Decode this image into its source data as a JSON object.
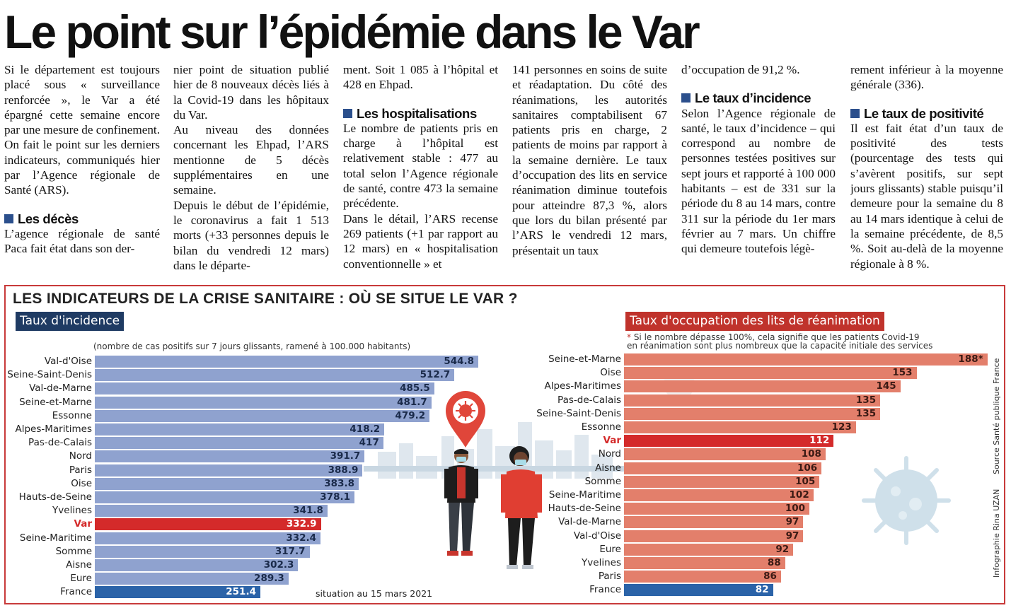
{
  "headline": "Le point sur l’épidémie dans le Var",
  "columns": [
    {
      "blocks": [
        {
          "type": "p",
          "text": "Si le département est toujours placé sous « surveillance renforcée », le Var a été épargné cette semaine encore par une mesure de confinement. On fait le point sur les derniers indicateurs, communiqués hier par l’Agence régionale de Santé (ARS)."
        },
        {
          "type": "h",
          "text": "Les décès"
        },
        {
          "type": "p",
          "text": "L’agence régionale de santé Paca fait état dans son der-"
        }
      ]
    },
    {
      "blocks": [
        {
          "type": "p",
          "text": "nier point de situation publié hier de 8 nouveaux décès liés à la Covid-19 dans les hôpitaux du Var."
        },
        {
          "type": "p",
          "text": "Au niveau des données concernant les Ehpad, l’ARS mentionne de 5 décès supplémentaires en une semaine."
        },
        {
          "type": "p",
          "text": "Depuis le début de l’épidémie, le coronavirus a fait 1 513 morts (+33 personnes depuis le bilan du vendredi 12 mars) dans le départe-"
        }
      ]
    },
    {
      "blocks": [
        {
          "type": "p",
          "text": "ment. Soit 1 085 à l’hôpital et 428 en Ehpad."
        },
        {
          "type": "h",
          "text": "Les hospitalisations"
        },
        {
          "type": "p",
          "text": "Le nombre de patients pris en charge à l’hôpital est relativement stable : 477 au total selon l’Agence régionale de santé, contre 473 la semaine précédente."
        },
        {
          "type": "p",
          "text": "Dans le détail, l’ARS recense 269 patients (+1 par rapport au 12 mars) en « hospitalisation conventionnelle » et"
        }
      ]
    },
    {
      "blocks": [
        {
          "type": "p",
          "text": "141 personnes en soins de suite et réadaptation. Du côté des réanimations, les autorités sanitaires comptabilisent 67 patients pris en charge, 2 patients de moins par rapport à la semaine dernière. Le taux d’occupation des lits en service réanimation diminue toutefois pour atteindre 87,3 %, alors que lors du bilan présenté par l’ARS le vendredi 12 mars, présentait un taux"
        }
      ]
    },
    {
      "blocks": [
        {
          "type": "p",
          "text": "d’occupation de 91,2 %."
        },
        {
          "type": "h",
          "text": "Le taux d’incidence"
        },
        {
          "type": "p",
          "text": "Selon l’Agence régionale de santé, le taux d’incidence – qui correspond au nombre de personnes testées positives sur sept jours et rapporté à 100 000 habitants – est de 331 sur la période du 8 au 14 mars, contre 311 sur la période du 1er mars février au 7 mars. Un chiffre qui demeure toutefois légè-"
        }
      ]
    },
    {
      "blocks": [
        {
          "type": "p",
          "text": "rement inférieur à la moyenne générale (336)."
        },
        {
          "type": "h",
          "text": "Le taux de positivité"
        },
        {
          "type": "p",
          "text": "Il est fait état d’un taux de positivité des tests (pourcentage des tests qui s’avèrent positifs, sur sept jours glissants) stable puisqu’il demeure pour la semaine du 8 au 14 mars identique à celui de la semaine précédente, de 8,5 %. Soit au-delà de la moyenne régionale à 8 %."
        }
      ]
    }
  ],
  "infographic": {
    "title": "LES INDICATEURS DE LA CRISE SANITAIRE : OÙ SE SITUE LE VAR ?",
    "left_tag": "Taux d'incidence",
    "left_subtitle": "(nombre de cas positifs sur 7 jours glissants, ramené à 100.000 habitants)",
    "right_tag": "Taux d'occupation des lits de réanimation",
    "right_note_star": "*",
    "right_note_line1": " Si le nombre dépasse 100%, cela signifie que les patients Covid-19",
    "right_note_line2": "en réanimation sont plus nombreux que la capacité initiale des services",
    "footnote": "situation au 15 mars 2021",
    "source": "Source Santé publique France",
    "credit": "Infographie Rina UZAN",
    "colors": {
      "bar": "#8fa2cf",
      "highlight": "#d42a2a",
      "france_left": "#2b63a8",
      "bar_right": "#e37f6b",
      "france_right": "#2b63a8"
    }
  },
  "chart_data": [
    {
      "type": "bar",
      "title": "Taux d'incidence",
      "subtitle": "(nombre de cas positifs sur 7 jours glissants, ramené à 100.000 habitants)",
      "orientation": "horizontal",
      "categories": [
        "Val-d'Oise",
        "Seine-Saint-Denis",
        "Val-de-Marne",
        "Seine-et-Marne",
        "Essonne",
        "Alpes-Maritimes",
        "Pas-de-Calais",
        "Nord",
        "Paris",
        "Oise",
        "Hauts-de-Seine",
        "Yvelines",
        "Var",
        "Seine-Maritime",
        "Somme",
        "Aisne",
        "Eure",
        "France"
      ],
      "values": [
        544.8,
        512.7,
        485.5,
        481.7,
        479.2,
        418.2,
        417,
        391.7,
        388.9,
        383.8,
        378.1,
        341.8,
        332.9,
        332.4,
        317.7,
        302.3,
        289.3,
        251.4
      ],
      "value_labels": [
        "544.8",
        "512.7",
        "485.5",
        "481.7",
        "479.2",
        "418.2",
        "417",
        "391.7",
        "388.9",
        "383.8",
        "378.1",
        "341.8",
        "332.9",
        "332.4",
        "317.7",
        "302.3",
        "289.3",
        "251.4"
      ],
      "highlight": [
        "Var",
        "France"
      ]
    },
    {
      "type": "bar",
      "title": "Taux d'occupation des lits de réanimation",
      "orientation": "horizontal",
      "categories": [
        "Seine-et-Marne",
        "Oise",
        "Alpes-Maritimes",
        "Pas-de-Calais",
        "Seine-Saint-Denis",
        "Essonne",
        "Var",
        "Nord",
        "Aisne",
        "Somme",
        "Seine-Maritime",
        "Hauts-de-Seine",
        "Val-de-Marne",
        "Val-d'Oise",
        "Eure",
        "Yvelines",
        "Paris",
        "France"
      ],
      "values": [
        188,
        153,
        145,
        135,
        135,
        123,
        112,
        108,
        106,
        105,
        102,
        100,
        97,
        97,
        92,
        88,
        86,
        82
      ],
      "value_labels": [
        "188*",
        "153",
        "145",
        "135",
        "135",
        "123",
        "112",
        "108",
        "106",
        "105",
        "102",
        "100",
        "97",
        "97",
        "92",
        "88",
        "86",
        "82"
      ],
      "highlight": [
        "Var",
        "France"
      ]
    }
  ]
}
